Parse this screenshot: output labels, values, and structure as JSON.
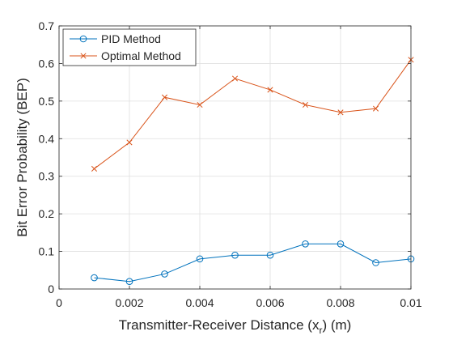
{
  "chart_data": {
    "type": "line",
    "title": "",
    "xlabel": "Transmitter-Receiver Distance (x",
    "xlabel_sub": "r",
    "xlabel_suffix": ") (m)",
    "ylabel": "Bit Error Probability (BEP)",
    "xlim": [
      0,
      0.01
    ],
    "ylim": [
      0,
      0.7
    ],
    "xticks": [
      0,
      0.002,
      0.004,
      0.006,
      0.008,
      0.01
    ],
    "xtick_labels": [
      "0",
      "0.002",
      "0.004",
      "0.006",
      "0.008",
      "0.01"
    ],
    "yticks": [
      0,
      0.1,
      0.2,
      0.3,
      0.4,
      0.5,
      0.6,
      0.7
    ],
    "ytick_labels": [
      "0",
      "0.1",
      "0.2",
      "0.3",
      "0.4",
      "0.5",
      "0.6",
      "0.7"
    ],
    "grid": true,
    "legend_position": "top-left",
    "x": [
      0.001,
      0.002,
      0.003,
      0.004,
      0.005,
      0.006,
      0.007,
      0.008,
      0.009,
      0.01
    ],
    "series": [
      {
        "name": "PID Method",
        "color": "#0072BD",
        "marker": "circle",
        "values": [
          0.03,
          0.02,
          0.04,
          0.08,
          0.09,
          0.09,
          0.12,
          0.12,
          0.07,
          0.08
        ]
      },
      {
        "name": "Optimal Method",
        "color": "#D95319",
        "marker": "x",
        "values": [
          0.32,
          0.39,
          0.51,
          0.49,
          0.56,
          0.53,
          0.49,
          0.47,
          0.48,
          0.61
        ]
      }
    ]
  }
}
